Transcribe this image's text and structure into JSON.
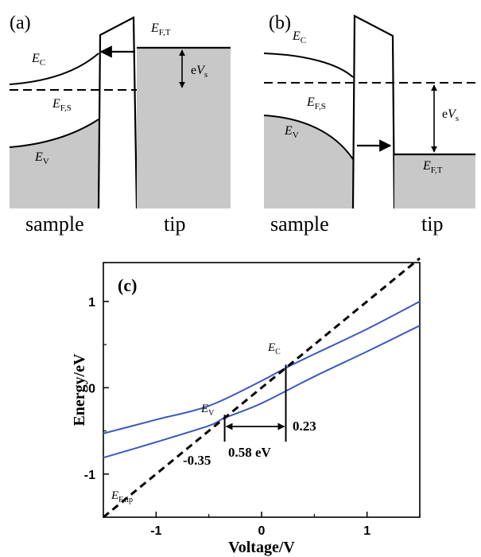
{
  "panel_a": {
    "tag": "(a)",
    "ec": {
      "main": "E",
      "sub": "C"
    },
    "efs": {
      "main": "E",
      "sub": "F,S"
    },
    "ev": {
      "main": "E",
      "sub": "V"
    },
    "eft": {
      "main": "E",
      "sub": "F,T"
    },
    "evs": {
      "pre": "e",
      "main": "V",
      "sub": "s"
    },
    "sample_label": "sample",
    "tip_label": "tip"
  },
  "panel_b": {
    "tag": "(b)",
    "ec": {
      "main": "E",
      "sub": "C"
    },
    "efs": {
      "main": "E",
      "sub": "F,S"
    },
    "ev": {
      "main": "E",
      "sub": "V"
    },
    "eft": {
      "main": "E",
      "sub": "F,T"
    },
    "evs": {
      "pre": "e",
      "main": "V",
      "sub": "s"
    },
    "sample_label": "sample",
    "tip_label": "tip"
  },
  "chart_data": {
    "type": "line",
    "tag": "(c)",
    "xlabel": "Voltage/V",
    "ylabel": "Energy/eV",
    "xlim": [
      -1.5,
      1.5
    ],
    "ylim": [
      -1.5,
      1.45
    ],
    "xticks": [
      -1,
      0,
      1
    ],
    "yticks": [
      -1,
      0,
      1
    ],
    "series": [
      {
        "name": "E_C",
        "style": "solid",
        "color": "#3a5bb8",
        "x": [
          -1.5,
          -1.0,
          -0.5,
          0.0,
          0.23,
          0.5,
          1.0,
          1.5
        ],
        "y": [
          -0.53,
          -0.37,
          -0.21,
          0.08,
          0.23,
          0.39,
          0.68,
          1.0
        ]
      },
      {
        "name": "E_V",
        "style": "solid",
        "color": "#3a5bb8",
        "x": [
          -1.5,
          -1.0,
          -0.5,
          -0.35,
          0.0,
          0.5,
          1.0,
          1.5
        ],
        "y": [
          -0.81,
          -0.63,
          -0.44,
          -0.35,
          -0.18,
          0.13,
          0.42,
          0.72
        ]
      },
      {
        "name": "E_F,tip",
        "style": "dashed",
        "color": "#000000",
        "x": [
          -1.5,
          1.5
        ],
        "y": [
          -1.5,
          1.5
        ]
      }
    ],
    "labels": {
      "ec": {
        "main": "E",
        "sub": "C"
      },
      "ev": {
        "main": "E",
        "sub": "V"
      },
      "eftip": {
        "main": "E",
        "sub": "F,tip"
      }
    },
    "annotations": {
      "v_ev": "-0.35",
      "v_ec": "0.23",
      "gap": "0.58 eV"
    },
    "markers": {
      "x_ev": -0.35,
      "x_ec": 0.23
    }
  }
}
